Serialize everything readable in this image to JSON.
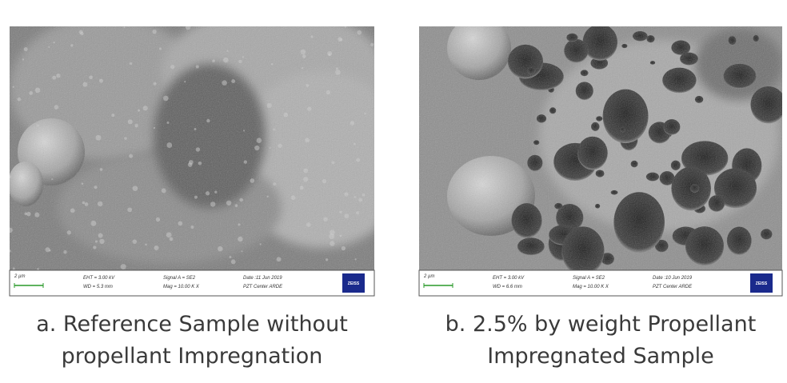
{
  "panels": [
    {
      "databar": {
        "scale": "2 µm",
        "eht": "EHT = 3.00 kV",
        "wd": "WD = 5.3 mm",
        "signal": "Signal A = SE2",
        "mag": "Mag = 10.00 K X",
        "date": "Date :11 Jun 2019",
        "center": "PZT Center ARDE",
        "logo": "ZEISS"
      },
      "caption": [
        "a. Reference Sample without",
        "propellant Impregnation"
      ]
    },
    {
      "databar": {
        "scale": "2 µm",
        "eht": "EHT = 3.00 kV",
        "wd": "WD = 6.6 mm",
        "signal": "Signal A = SE2",
        "mag": "Mag = 10.00 K X",
        "date": "Date :10 Jun 2019",
        "center": "PZT Center ARDE",
        "logo": "ZEISS"
      },
      "caption": [
        "b. 2.5% by weight Propellant",
        "Impregnated Sample"
      ]
    }
  ]
}
